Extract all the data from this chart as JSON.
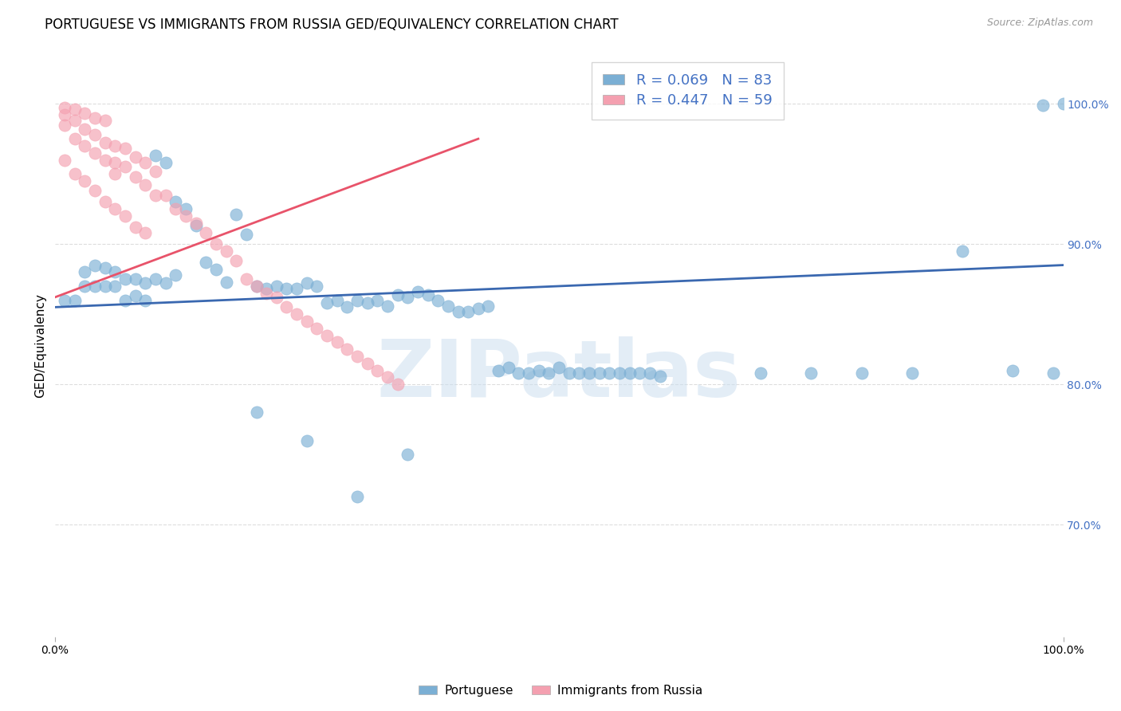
{
  "title": "PORTUGUESE VS IMMIGRANTS FROM RUSSIA GED/EQUIVALENCY CORRELATION CHART",
  "source": "Source: ZipAtlas.com",
  "ylabel": "GED/Equivalency",
  "watermark": "ZIPatlas",
  "blue_R": 0.069,
  "blue_N": 83,
  "pink_R": 0.447,
  "pink_N": 59,
  "xlim": [
    0.0,
    1.0
  ],
  "ylim": [
    0.62,
    1.035
  ],
  "ytick_labels": [
    "70.0%",
    "80.0%",
    "90.0%",
    "100.0%"
  ],
  "ytick_values": [
    0.7,
    0.8,
    0.9,
    1.0
  ],
  "xtick_labels": [
    "0.0%",
    "100.0%"
  ],
  "xtick_values": [
    0.0,
    1.0
  ],
  "title_fontsize": 12,
  "axis_label_fontsize": 11,
  "tick_fontsize": 10,
  "blue_scatter_x": [
    0.01,
    0.02,
    0.03,
    0.03,
    0.04,
    0.04,
    0.05,
    0.05,
    0.06,
    0.06,
    0.07,
    0.07,
    0.08,
    0.08,
    0.09,
    0.09,
    0.1,
    0.1,
    0.11,
    0.11,
    0.12,
    0.12,
    0.13,
    0.14,
    0.15,
    0.16,
    0.17,
    0.18,
    0.19,
    0.2,
    0.21,
    0.22,
    0.23,
    0.24,
    0.25,
    0.26,
    0.27,
    0.28,
    0.29,
    0.3,
    0.31,
    0.32,
    0.33,
    0.34,
    0.35,
    0.36,
    0.37,
    0.38,
    0.39,
    0.4,
    0.41,
    0.42,
    0.43,
    0.44,
    0.45,
    0.46,
    0.47,
    0.48,
    0.49,
    0.5,
    0.51,
    0.52,
    0.53,
    0.54,
    0.55,
    0.56,
    0.57,
    0.58,
    0.59,
    0.6,
    0.7,
    0.75,
    0.8,
    0.85,
    0.9,
    0.95,
    0.98,
    0.99,
    1.0,
    0.25,
    0.2,
    0.3,
    0.35
  ],
  "blue_scatter_y": [
    0.86,
    0.86,
    0.87,
    0.88,
    0.87,
    0.885,
    0.87,
    0.883,
    0.87,
    0.88,
    0.875,
    0.86,
    0.875,
    0.863,
    0.872,
    0.86,
    0.875,
    0.963,
    0.872,
    0.958,
    0.93,
    0.878,
    0.925,
    0.913,
    0.887,
    0.882,
    0.873,
    0.921,
    0.907,
    0.87,
    0.868,
    0.87,
    0.868,
    0.868,
    0.872,
    0.87,
    0.858,
    0.86,
    0.855,
    0.86,
    0.858,
    0.86,
    0.856,
    0.864,
    0.862,
    0.866,
    0.864,
    0.86,
    0.856,
    0.852,
    0.852,
    0.854,
    0.856,
    0.81,
    0.812,
    0.808,
    0.808,
    0.81,
    0.808,
    0.812,
    0.808,
    0.808,
    0.808,
    0.808,
    0.808,
    0.808,
    0.808,
    0.808,
    0.808,
    0.806,
    0.808,
    0.808,
    0.808,
    0.808,
    0.895,
    0.81,
    0.999,
    0.808,
    1.0,
    0.76,
    0.78,
    0.72,
    0.75
  ],
  "pink_scatter_x": [
    0.01,
    0.01,
    0.01,
    0.02,
    0.02,
    0.02,
    0.03,
    0.03,
    0.03,
    0.04,
    0.04,
    0.04,
    0.05,
    0.05,
    0.05,
    0.06,
    0.06,
    0.06,
    0.07,
    0.07,
    0.08,
    0.08,
    0.09,
    0.09,
    0.1,
    0.1,
    0.11,
    0.12,
    0.13,
    0.14,
    0.15,
    0.16,
    0.17,
    0.18,
    0.19,
    0.2,
    0.21,
    0.22,
    0.23,
    0.24,
    0.25,
    0.26,
    0.27,
    0.28,
    0.29,
    0.3,
    0.31,
    0.32,
    0.33,
    0.34,
    0.01,
    0.02,
    0.03,
    0.04,
    0.05,
    0.06,
    0.07,
    0.08,
    0.09
  ],
  "pink_scatter_y": [
    0.997,
    0.992,
    0.985,
    0.996,
    0.988,
    0.975,
    0.993,
    0.982,
    0.97,
    0.99,
    0.978,
    0.965,
    0.988,
    0.972,
    0.96,
    0.97,
    0.958,
    0.95,
    0.968,
    0.955,
    0.962,
    0.948,
    0.958,
    0.942,
    0.952,
    0.935,
    0.935,
    0.925,
    0.92,
    0.915,
    0.908,
    0.9,
    0.895,
    0.888,
    0.875,
    0.87,
    0.865,
    0.862,
    0.855,
    0.85,
    0.845,
    0.84,
    0.835,
    0.83,
    0.825,
    0.82,
    0.815,
    0.81,
    0.805,
    0.8,
    0.96,
    0.95,
    0.945,
    0.938,
    0.93,
    0.925,
    0.92,
    0.912,
    0.908
  ],
  "blue_line_x": [
    0.0,
    1.0
  ],
  "blue_line_y": [
    0.855,
    0.885
  ],
  "pink_line_x": [
    0.0,
    0.42
  ],
  "pink_line_y": [
    0.862,
    0.975
  ],
  "blue_dot_color": "#7bafd4",
  "pink_dot_color": "#f4a0b0",
  "blue_line_color": "#3a68b0",
  "pink_line_color": "#e8536a",
  "grid_color": "#dddddd",
  "bg_color": "#ffffff",
  "tick_color": "#4472c4"
}
